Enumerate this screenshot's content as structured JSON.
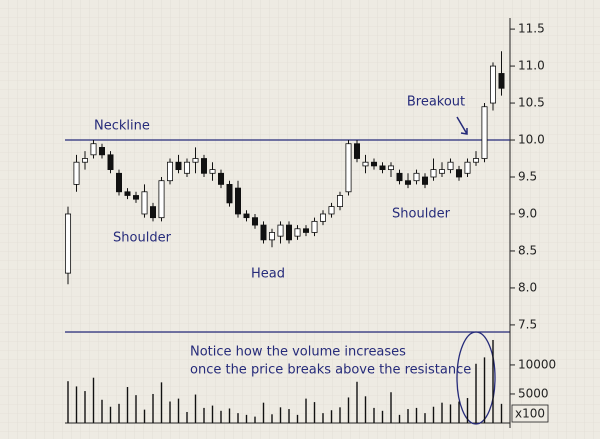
{
  "chart_data": {
    "type": "candlestick",
    "open": [
      8.2,
      9.4,
      9.7,
      9.8,
      9.9,
      9.8,
      9.55,
      9.3,
      9.25,
      9.0,
      9.1,
      8.95,
      9.45,
      9.7,
      9.55,
      9.7,
      9.75,
      9.55,
      9.55,
      9.4,
      9.35,
      9.0,
      8.95,
      8.85,
      8.65,
      8.7,
      8.85,
      8.7,
      8.8,
      8.75,
      8.9,
      9.0,
      9.1,
      9.3,
      9.95,
      9.65,
      9.7,
      9.65,
      9.6,
      9.55,
      9.45,
      9.45,
      9.5,
      9.5,
      9.55,
      9.6,
      9.6,
      9.55,
      9.7,
      9.75,
      10.5,
      10.9
    ],
    "high": [
      9.1,
      9.8,
      9.85,
      10.0,
      9.95,
      9.85,
      9.6,
      9.35,
      9.3,
      9.4,
      9.15,
      9.5,
      9.75,
      9.8,
      9.75,
      9.9,
      9.8,
      9.7,
      9.6,
      9.45,
      9.45,
      9.05,
      9.0,
      8.9,
      8.8,
      8.9,
      8.9,
      8.85,
      8.85,
      8.95,
      9.05,
      9.15,
      9.3,
      10.0,
      10.0,
      9.8,
      9.75,
      9.7,
      9.7,
      9.6,
      9.55,
      9.6,
      9.55,
      9.75,
      9.7,
      9.75,
      9.65,
      9.75,
      9.85,
      10.5,
      11.05,
      11.2
    ],
    "low": [
      8.05,
      9.3,
      9.6,
      9.75,
      9.75,
      9.55,
      9.25,
      9.2,
      9.15,
      8.95,
      8.9,
      8.9,
      9.4,
      9.55,
      9.5,
      9.55,
      9.5,
      9.45,
      9.35,
      9.1,
      8.95,
      8.9,
      8.8,
      8.6,
      8.55,
      8.6,
      8.6,
      8.65,
      8.7,
      8.7,
      8.85,
      8.95,
      9.05,
      9.25,
      9.7,
      9.55,
      9.6,
      9.55,
      9.5,
      9.4,
      9.35,
      9.4,
      9.35,
      9.45,
      9.5,
      9.55,
      9.45,
      9.5,
      9.65,
      9.7,
      10.4,
      10.6
    ],
    "close": [
      9.0,
      9.7,
      9.75,
      9.95,
      9.8,
      9.6,
      9.3,
      9.25,
      9.2,
      9.3,
      8.95,
      9.45,
      9.7,
      9.6,
      9.7,
      9.75,
      9.55,
      9.6,
      9.4,
      9.15,
      9.0,
      8.95,
      8.85,
      8.65,
      8.75,
      8.85,
      8.65,
      8.8,
      8.75,
      8.9,
      9.0,
      9.1,
      9.25,
      9.95,
      9.75,
      9.7,
      9.65,
      9.6,
      9.65,
      9.45,
      9.4,
      9.55,
      9.4,
      9.6,
      9.6,
      9.7,
      9.5,
      9.7,
      9.75,
      10.45,
      11.0,
      10.7
    ],
    "volume": [
      7200,
      6300,
      5500,
      7800,
      4000,
      2800,
      3300,
      6200,
      4800,
      2300,
      5000,
      7000,
      3700,
      4200,
      1900,
      4900,
      2600,
      3000,
      2100,
      2500,
      1700,
      1400,
      1100,
      3500,
      1500,
      2700,
      2400,
      1400,
      4200,
      3600,
      1700,
      2200,
      2700,
      4400,
      7100,
      4600,
      2600,
      2100,
      5300,
      1400,
      2400,
      2600,
      1700,
      2800,
      3500,
      3200,
      3700,
      4300,
      10200,
      11300,
      14300,
      3300
    ],
    "ylim": [
      7.35,
      11.65
    ],
    "yticks": [
      {
        "value": 7.5,
        "label": "7.5"
      },
      {
        "value": 8.0,
        "label": "8.0"
      },
      {
        "value": 8.5,
        "label": "8.5"
      },
      {
        "value": 9.0,
        "label": "9.0"
      },
      {
        "value": 9.5,
        "label": "9.5"
      },
      {
        "value": 10.0,
        "label": "10.0"
      },
      {
        "value": 10.5,
        "label": "10.5"
      },
      {
        "value": 11.0,
        "label": "11.0"
      },
      {
        "value": 11.5,
        "label": "11.5"
      }
    ],
    "volume_ylim": [
      0,
      15500
    ],
    "volume_yticks": [
      5000,
      10000
    ],
    "volume_unit": "x100",
    "neckline": {
      "label": "Neckline",
      "value": 10.0
    },
    "annotations": [
      "Shoulder",
      "Head",
      "Shoulder",
      "Breakout"
    ],
    "note": [
      "Notice how the volume increases",
      "once the price breaks above the resistance"
    ],
    "color": "#262b7a"
  }
}
